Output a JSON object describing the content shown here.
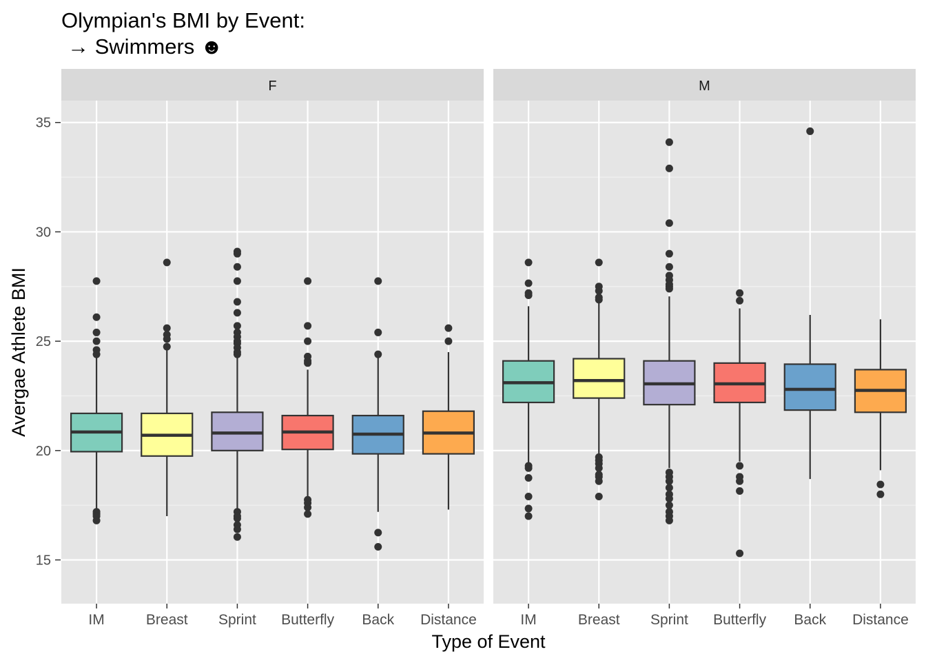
{
  "chart_data": {
    "type": "boxplot",
    "title_line1": "Olympian's BMI by Event:",
    "title_line2": "→ Swimmers ☻",
    "xlabel": "Type of Event",
    "ylabel": "Avergae Athlete BMI",
    "ylim": [
      13,
      36
    ],
    "yticks": [
      15,
      20,
      25,
      30,
      35
    ],
    "grid": "on",
    "legend": "none",
    "categories": [
      "IM",
      "Breast",
      "Sprint",
      "Butterfly",
      "Back",
      "Distance"
    ],
    "category_colors": [
      "#7fcdbb",
      "#ffff99",
      "#b3aed4",
      "#f8766d",
      "#6aa1cc",
      "#fdaa4f"
    ],
    "panels": [
      {
        "label": "F",
        "boxes": [
          {
            "category": "IM",
            "whisker_low": 17.3,
            "q1": 19.95,
            "median": 20.85,
            "q3": 21.7,
            "whisker_high": 24.3,
            "outliers": [
              27.75,
              26.1,
              25.4,
              25.0,
              24.6,
              24.4,
              17.2,
              17.1,
              17.0,
              16.8
            ]
          },
          {
            "category": "Breast",
            "whisker_low": 17.0,
            "q1": 19.75,
            "median": 20.7,
            "q3": 21.7,
            "whisker_high": 24.6,
            "outliers": [
              28.6,
              25.6,
              25.3,
              25.1,
              24.75
            ]
          },
          {
            "category": "Sprint",
            "whisker_low": 17.3,
            "q1": 20.0,
            "median": 20.8,
            "q3": 21.75,
            "whisker_high": 24.3,
            "outliers": [
              29.1,
              29.0,
              28.4,
              27.75,
              26.8,
              26.3,
              25.7,
              25.4,
              25.2,
              25.0,
              24.9,
              24.7,
              24.5,
              24.4,
              17.2,
              17.0,
              16.9,
              16.6,
              16.4,
              16.05
            ]
          },
          {
            "category": "Butterfly",
            "whisker_low": 17.9,
            "q1": 20.05,
            "median": 20.85,
            "q3": 21.6,
            "whisker_high": 23.7,
            "outliers": [
              27.75,
              25.7,
              25.0,
              24.3,
              24.1,
              24.0,
              17.75,
              17.6,
              17.4,
              17.1
            ]
          },
          {
            "category": "Back",
            "whisker_low": 17.2,
            "q1": 19.85,
            "median": 20.75,
            "q3": 21.6,
            "whisker_high": 24.4,
            "outliers": [
              27.75,
              25.4,
              24.4,
              16.25,
              15.6
            ]
          },
          {
            "category": "Distance",
            "whisker_low": 17.3,
            "q1": 19.85,
            "median": 20.8,
            "q3": 21.8,
            "whisker_high": 24.5,
            "outliers": [
              25.6,
              25.0
            ]
          }
        ]
      },
      {
        "label": "M",
        "boxes": [
          {
            "category": "IM",
            "whisker_low": 19.4,
            "q1": 22.2,
            "median": 23.1,
            "q3": 24.1,
            "whisker_high": 26.6,
            "outliers": [
              28.6,
              27.65,
              27.2,
              27.1,
              19.3,
              19.2,
              18.75,
              17.9,
              17.35,
              17.0
            ]
          },
          {
            "category": "Breast",
            "whisker_low": 19.8,
            "q1": 22.4,
            "median": 23.2,
            "q3": 24.2,
            "whisker_high": 26.8,
            "outliers": [
              28.6,
              27.5,
              27.3,
              27.0,
              26.9,
              19.7,
              19.55,
              19.4,
              19.2,
              18.9,
              18.8,
              18.6,
              17.9
            ]
          },
          {
            "category": "Sprint",
            "whisker_low": 19.2,
            "q1": 22.1,
            "median": 23.05,
            "q3": 24.1,
            "whisker_high": 27.05,
            "outliers": [
              34.1,
              32.9,
              30.4,
              29.0,
              28.4,
              28.0,
              27.8,
              27.6,
              27.5,
              27.4,
              19.0,
              18.8,
              18.6,
              18.3,
              18.0,
              17.8,
              17.5,
              17.2,
              17.0,
              16.8
            ]
          },
          {
            "category": "Butterfly",
            "whisker_low": 19.5,
            "q1": 22.2,
            "median": 23.05,
            "q3": 24.0,
            "whisker_high": 26.5,
            "outliers": [
              27.2,
              26.85,
              19.3,
              18.8,
              18.6,
              18.15,
              15.3
            ]
          },
          {
            "category": "Back",
            "whisker_low": 18.7,
            "q1": 21.85,
            "median": 22.8,
            "q3": 23.95,
            "whisker_high": 26.2,
            "outliers": [
              34.6
            ]
          },
          {
            "category": "Distance",
            "whisker_low": 19.1,
            "q1": 21.75,
            "median": 22.75,
            "q3": 23.7,
            "whisker_high": 26.0,
            "outliers": [
              18.45,
              18.0
            ]
          }
        ]
      }
    ]
  }
}
